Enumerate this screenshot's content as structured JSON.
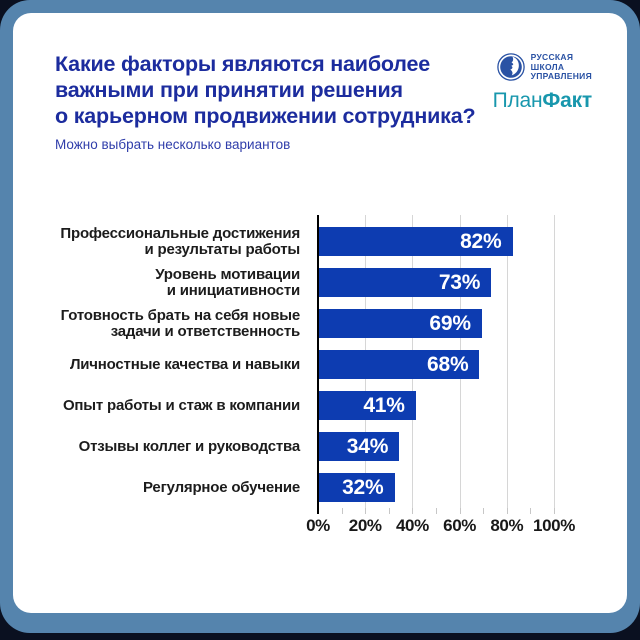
{
  "header": {
    "title_lines": [
      "Какие факторы являются наиболее",
      "важными при принятии решения",
      "о карьерном продвижении сотрудника?"
    ],
    "subtitle": "Можно выбрать несколько вариантов"
  },
  "logos": {
    "rsu": {
      "lines": [
        "РУССКАЯ",
        "ШКОЛА",
        "УПРАВЛЕНИЯ"
      ],
      "color": "#2a52a4"
    },
    "planfact": {
      "regular": "План",
      "bold": "Факт",
      "color": "#1897ad"
    }
  },
  "chart_data": {
    "type": "bar",
    "orientation": "horizontal",
    "title": "Какие факторы являются наиболее важными при принятии решения о карьерном продвижении сотрудника?",
    "subtitle": "Можно выбрать несколько вариантов",
    "categories": [
      "Профессиональные достижения\nи результаты работы",
      "Уровень мотивации\nи инициативности",
      "Готовность брать на себя новые\nзадачи и ответственность",
      "Личностные качества и навыки",
      "Опыт работы и стаж в компании",
      "Отзывы коллег и руководства",
      "Регулярное обучение"
    ],
    "values": [
      82,
      73,
      69,
      68,
      41,
      34,
      32
    ],
    "value_suffix": "%",
    "xlim": [
      0,
      100
    ],
    "x_tick_values": [
      0,
      20,
      40,
      60,
      80,
      100
    ],
    "x_tick_labels": [
      "0%",
      "20%",
      "40%",
      "60%",
      "80%",
      "100%"
    ],
    "minor_tick_step": 10,
    "grid": "vertical",
    "legend": "none",
    "bar_color": "#0d3cb1",
    "value_label_color": "#ffffff"
  },
  "colors": {
    "outer_bg": "#0a1020",
    "frame": "#5584ad",
    "card_bg": "#ffffff",
    "title": "#1c2c9e",
    "subtitle": "#2f3daa",
    "bar": "#0d3cb1",
    "axis_line": "#000000",
    "gridline": "#d6d6d6",
    "category_label": "#1c1c1c",
    "tick_label": "#191919"
  }
}
